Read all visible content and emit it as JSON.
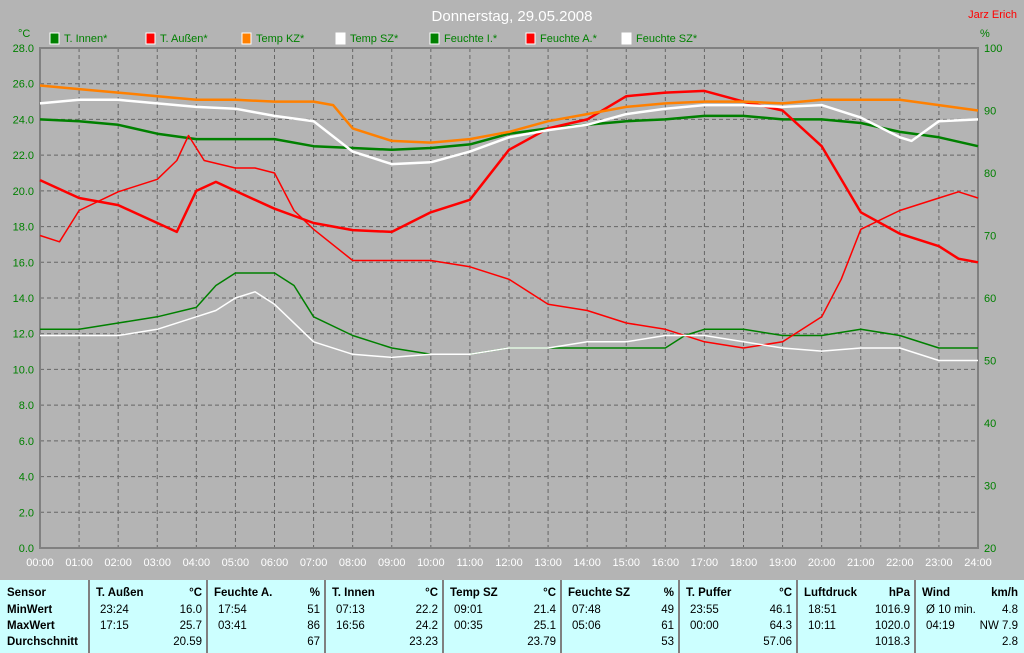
{
  "chart_data": {
    "type": "line",
    "title": "Donnerstag, 29.05.2008",
    "author": "Jarz Erich",
    "ylabel_left": "°C",
    "ylabel_right": "%",
    "ylim_left": [
      0,
      28
    ],
    "ylim_right": [
      20,
      100
    ],
    "yticks_left": [
      "0.0",
      "2.0",
      "4.0",
      "6.0",
      "8.0",
      "10.0",
      "12.0",
      "14.0",
      "16.0",
      "18.0",
      "20.0",
      "22.0",
      "24.0",
      "26.0",
      "28.0"
    ],
    "yticks_right": [
      "20",
      "30",
      "40",
      "50",
      "60",
      "70",
      "80",
      "90",
      "100"
    ],
    "xticks": [
      "00:00",
      "01:00",
      "02:00",
      "03:00",
      "04:00",
      "05:00",
      "06:00",
      "07:00",
      "08:00",
      "09:00",
      "10:00",
      "11:00",
      "12:00",
      "13:00",
      "14:00",
      "15:00",
      "16:00",
      "17:00",
      "18:00",
      "19:00",
      "20:00",
      "21:00",
      "22:00",
      "23:00",
      "24:00"
    ],
    "grid": true,
    "series": [
      {
        "name": "T. Innen*",
        "color": "#008000",
        "axis": "left",
        "width": 2,
        "points": [
          [
            0,
            24.0
          ],
          [
            1,
            23.9
          ],
          [
            2,
            23.7
          ],
          [
            3,
            23.2
          ],
          [
            4,
            22.9
          ],
          [
            5,
            22.9
          ],
          [
            6,
            22.9
          ],
          [
            7,
            22.5
          ],
          [
            8,
            22.4
          ],
          [
            9,
            22.3
          ],
          [
            10,
            22.4
          ],
          [
            11,
            22.6
          ],
          [
            12,
            23.2
          ],
          [
            13,
            23.5
          ],
          [
            14,
            23.7
          ],
          [
            15,
            23.9
          ],
          [
            16,
            24.0
          ],
          [
            17,
            24.2
          ],
          [
            18,
            24.2
          ],
          [
            19,
            24.0
          ],
          [
            20,
            24.0
          ],
          [
            21,
            23.8
          ],
          [
            22,
            23.3
          ],
          [
            23,
            23.0
          ],
          [
            24,
            22.5
          ]
        ]
      },
      {
        "name": "T. Außen*",
        "color": "#ff0000",
        "axis": "left",
        "width": 2,
        "points": [
          [
            0,
            20.6
          ],
          [
            1,
            19.6
          ],
          [
            2,
            19.2
          ],
          [
            3,
            18.2
          ],
          [
            3.5,
            17.7
          ],
          [
            4,
            20.0
          ],
          [
            4.5,
            20.5
          ],
          [
            5,
            20.0
          ],
          [
            6,
            19.0
          ],
          [
            7,
            18.2
          ],
          [
            8,
            17.8
          ],
          [
            9,
            17.7
          ],
          [
            10,
            18.8
          ],
          [
            11,
            19.5
          ],
          [
            12,
            22.3
          ],
          [
            13,
            23.5
          ],
          [
            14,
            24.0
          ],
          [
            15,
            25.3
          ],
          [
            16,
            25.5
          ],
          [
            17,
            25.6
          ],
          [
            18,
            25.0
          ],
          [
            19,
            24.5
          ],
          [
            20,
            22.5
          ],
          [
            21,
            18.8
          ],
          [
            22,
            17.6
          ],
          [
            23,
            16.9
          ],
          [
            23.5,
            16.2
          ],
          [
            24,
            16.0
          ]
        ]
      },
      {
        "name": "Temp KZ*",
        "color": "#ff8000",
        "axis": "left",
        "width": 2,
        "points": [
          [
            0,
            25.9
          ],
          [
            1,
            25.7
          ],
          [
            2,
            25.5
          ],
          [
            3,
            25.3
          ],
          [
            4,
            25.1
          ],
          [
            5,
            25.1
          ],
          [
            6,
            25.0
          ],
          [
            7,
            25.0
          ],
          [
            7.5,
            24.8
          ],
          [
            8,
            23.5
          ],
          [
            9,
            22.8
          ],
          [
            10,
            22.7
          ],
          [
            11,
            22.9
          ],
          [
            12,
            23.3
          ],
          [
            13,
            23.9
          ],
          [
            14,
            24.3
          ],
          [
            15,
            24.7
          ],
          [
            16,
            24.9
          ],
          [
            17,
            25.0
          ],
          [
            18,
            25.0
          ],
          [
            19,
            24.9
          ],
          [
            20,
            25.1
          ],
          [
            21,
            25.1
          ],
          [
            22,
            25.1
          ],
          [
            23,
            24.8
          ],
          [
            24,
            24.5
          ]
        ]
      },
      {
        "name": "Temp SZ*",
        "color": "#ffffff",
        "axis": "left",
        "width": 2,
        "points": [
          [
            0,
            24.9
          ],
          [
            1,
            25.1
          ],
          [
            2,
            25.1
          ],
          [
            3,
            24.9
          ],
          [
            4,
            24.7
          ],
          [
            5,
            24.6
          ],
          [
            6,
            24.2
          ],
          [
            7,
            23.9
          ],
          [
            8,
            22.2
          ],
          [
            9,
            21.5
          ],
          [
            10,
            21.6
          ],
          [
            11,
            22.2
          ],
          [
            12,
            23.0
          ],
          [
            13,
            23.4
          ],
          [
            14,
            23.7
          ],
          [
            15,
            24.3
          ],
          [
            16,
            24.6
          ],
          [
            17,
            24.8
          ],
          [
            18,
            24.8
          ],
          [
            19,
            24.7
          ],
          [
            20,
            24.8
          ],
          [
            21,
            24.1
          ],
          [
            22,
            23.0
          ],
          [
            22.3,
            22.8
          ],
          [
            23,
            23.9
          ],
          [
            24,
            24.0
          ]
        ]
      },
      {
        "name": "Feuchte I.*",
        "color": "#008000",
        "axis": "right",
        "width": 1,
        "points": [
          [
            0,
            55
          ],
          [
            1,
            55
          ],
          [
            2,
            56
          ],
          [
            3,
            57
          ],
          [
            4,
            58.5
          ],
          [
            4.5,
            62
          ],
          [
            5,
            64
          ],
          [
            6,
            64
          ],
          [
            6.5,
            62
          ],
          [
            7,
            57
          ],
          [
            8,
            54
          ],
          [
            9,
            52
          ],
          [
            10,
            51
          ],
          [
            11,
            51
          ],
          [
            12,
            52
          ],
          [
            13,
            52
          ],
          [
            14,
            52
          ],
          [
            15,
            52
          ],
          [
            16,
            52
          ],
          [
            16.5,
            54
          ],
          [
            17,
            55
          ],
          [
            18,
            55
          ],
          [
            19,
            54
          ],
          [
            20,
            54
          ],
          [
            21,
            55
          ],
          [
            22,
            54
          ],
          [
            23,
            52
          ],
          [
            24,
            52
          ]
        ]
      },
      {
        "name": "Feuchte A.*",
        "color": "#ff0000",
        "axis": "right",
        "width": 1,
        "points": [
          [
            0,
            70
          ],
          [
            0.5,
            69
          ],
          [
            1,
            74
          ],
          [
            2,
            77
          ],
          [
            3,
            79
          ],
          [
            3.5,
            82
          ],
          [
            3.8,
            86
          ],
          [
            4.2,
            82
          ],
          [
            5,
            80.8
          ],
          [
            5.5,
            80.8
          ],
          [
            6,
            80
          ],
          [
            6.5,
            74
          ],
          [
            7,
            71
          ],
          [
            8,
            66
          ],
          [
            9,
            66
          ],
          [
            10,
            66
          ],
          [
            11,
            65
          ],
          [
            12,
            63
          ],
          [
            13,
            59
          ],
          [
            14,
            58
          ],
          [
            15,
            56
          ],
          [
            16,
            55
          ],
          [
            17,
            53
          ],
          [
            18,
            52
          ],
          [
            19,
            53
          ],
          [
            20,
            57
          ],
          [
            20.5,
            63
          ],
          [
            21,
            71
          ],
          [
            22,
            74
          ],
          [
            23,
            76
          ],
          [
            23.5,
            77
          ],
          [
            24,
            76
          ]
        ]
      },
      {
        "name": "Feuchte SZ*",
        "color": "#ffffff",
        "axis": "right",
        "width": 1,
        "points": [
          [
            0,
            54
          ],
          [
            1,
            54
          ],
          [
            2,
            54
          ],
          [
            3,
            55
          ],
          [
            4,
            57
          ],
          [
            4.5,
            58
          ],
          [
            5,
            60
          ],
          [
            5.5,
            61
          ],
          [
            6,
            59
          ],
          [
            7,
            53
          ],
          [
            8,
            51
          ],
          [
            9,
            50.5
          ],
          [
            10,
            51
          ],
          [
            11,
            51
          ],
          [
            12,
            52
          ],
          [
            13,
            52
          ],
          [
            14,
            53
          ],
          [
            15,
            53
          ],
          [
            16,
            54
          ],
          [
            17,
            54
          ],
          [
            18,
            53
          ],
          [
            19,
            52
          ],
          [
            20,
            51.5
          ],
          [
            21,
            52
          ],
          [
            22,
            52
          ],
          [
            23,
            50
          ],
          [
            24,
            50
          ]
        ]
      }
    ]
  },
  "table": {
    "row_labels": [
      "Sensor",
      "MinWert",
      "MaxWert",
      "Durchschnitt"
    ],
    "columns": [
      {
        "name": "T. Außen",
        "unit": "°C",
        "min_time": "23:24",
        "min": "16.0",
        "max_time": "17:15",
        "max": "25.7",
        "avg": "20.59"
      },
      {
        "name": "Feuchte A.",
        "unit": "%",
        "min_time": "17:54",
        "min": "51",
        "max_time": "03:41",
        "max": "86",
        "avg": "67"
      },
      {
        "name": "T. Innen",
        "unit": "°C",
        "min_time": "07:13",
        "min": "22.2",
        "max_time": "16:56",
        "max": "24.2",
        "avg": "23.23"
      },
      {
        "name": "Temp SZ",
        "unit": "°C",
        "min_time": "09:01",
        "min": "21.4",
        "max_time": "00:35",
        "max": "25.1",
        "avg": "23.79"
      },
      {
        "name": "Feuchte SZ",
        "unit": "%",
        "min_time": "07:48",
        "min": "49",
        "max_time": "05:06",
        "max": "61",
        "avg": "53"
      },
      {
        "name": "T. Puffer",
        "unit": "°C",
        "min_time": "23:55",
        "min": "46.1",
        "max_time": "00:00",
        "max": "64.3",
        "avg": "57.06"
      },
      {
        "name": "Luftdruck",
        "unit": "hPa",
        "min_time": "18:51",
        "min": "1016.9",
        "max_time": "10:11",
        "max": "1020.0",
        "avg": "1018.3"
      },
      {
        "name": "Wind",
        "unit": "km/h",
        "min_time": "Ø 10 min.",
        "min": "4.8",
        "max_time": "04:19",
        "max": "NW 7.9",
        "avg": "2.8"
      }
    ]
  }
}
